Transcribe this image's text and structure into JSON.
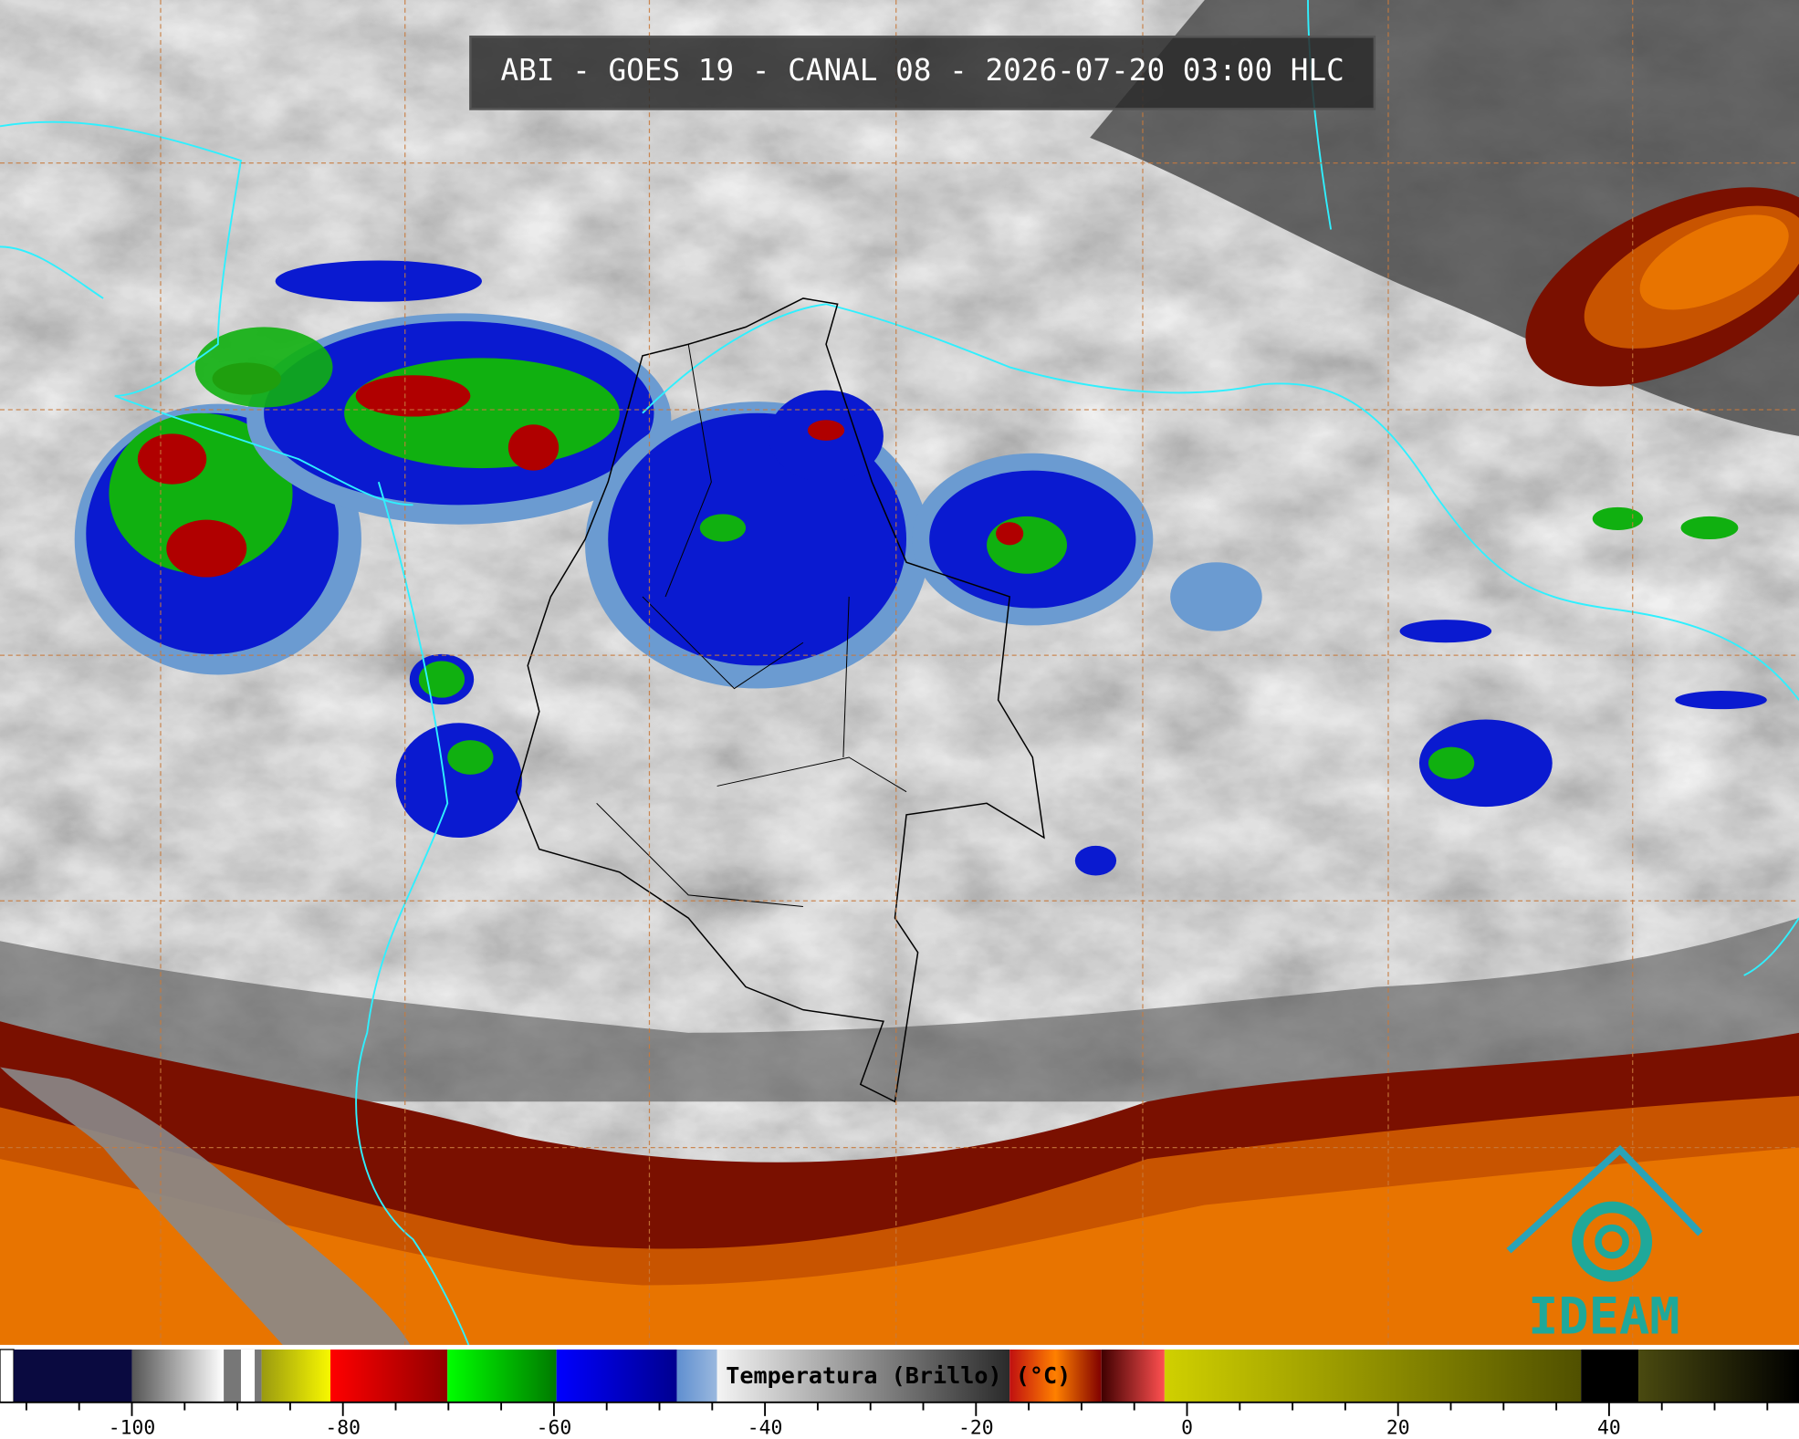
{
  "header": {
    "title": "ABI - GOES 19 - CANAL 08 - 2026-07-20 03:00 HLC"
  },
  "colorbar": {
    "label": "Temperatura (Brillo) (°C)",
    "xlim": [
      -112.5,
      58
    ],
    "ticks": [
      -100,
      -80,
      -60,
      -40,
      -20,
      0,
      20,
      40
    ],
    "minor_ticks": [
      -110,
      -105,
      -95,
      -90,
      -85,
      -75,
      -70,
      -65,
      -55,
      -50,
      -45,
      -35,
      -30,
      -25,
      -15,
      -10,
      -5,
      5,
      10,
      15,
      25,
      30,
      35,
      45,
      50,
      55
    ]
  },
  "logo": {
    "text": "IDEAM"
  }
}
